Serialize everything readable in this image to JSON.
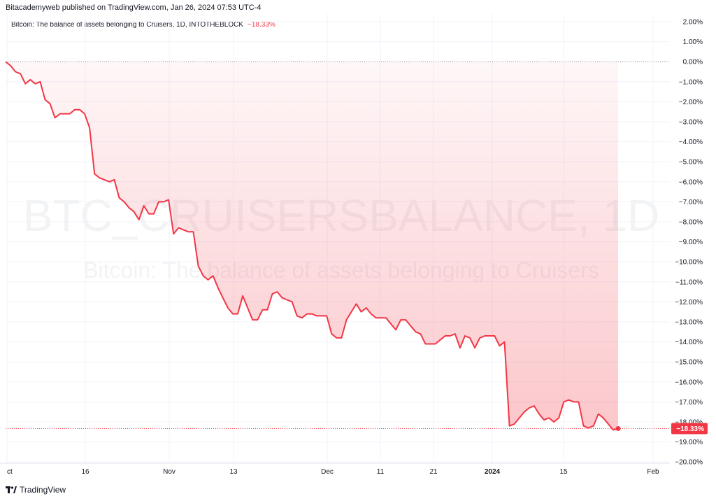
{
  "header": {
    "publisher": "Bitacademyweb published on TradingView.com, Jan 26, 2024 07:53 UTC-4"
  },
  "legend": {
    "title": "Bitcoin: The balance of assets belonging to Cruisers, 1D, INTOTHEBLOCK",
    "change": "−18.33%"
  },
  "watermark": {
    "symbol": "BTC_CRUISERSBALANCE, 1D",
    "description": "Bitcoin: The balance of assets belonging to Cruisers"
  },
  "footer": {
    "brand": "TradingView"
  },
  "colors": {
    "line": "#f23645",
    "fill": "#f23645",
    "zero_line": "#9598a1"
  },
  "chart_data": {
    "type": "area",
    "y_unit": "%",
    "ylim": [
      -20,
      2
    ],
    "y_ticks": [
      "2.00%",
      "1.00%",
      "0.00%",
      "−1.00%",
      "−2.00%",
      "−3.00%",
      "−4.00%",
      "−5.00%",
      "−6.00%",
      "−7.00%",
      "−8.00%",
      "−9.00%",
      "−10.00%",
      "−11.00%",
      "−12.00%",
      "−13.00%",
      "−14.00%",
      "−15.00%",
      "−16.00%",
      "−17.00%",
      "−18.00%",
      "−19.00%",
      "−20.00%"
    ],
    "x_ticks": [
      "ct",
      "16",
      "Nov",
      "13",
      "Dec",
      "11",
      "21",
      "2024",
      "15",
      "Feb"
    ],
    "last_value_label": "−18.33%",
    "grid": true,
    "series": [
      {
        "values": [
          0.0,
          -0.2,
          -0.5,
          -0.6,
          -1.1,
          -0.9,
          -1.1,
          -1.0,
          -1.9,
          -2.1,
          -2.8,
          -2.6,
          -2.6,
          -2.6,
          -2.4,
          -2.4,
          -2.6,
          -3.3,
          -5.6,
          -5.8,
          -5.9,
          -6.0,
          -5.9,
          -6.8,
          -7.0,
          -7.3,
          -7.5,
          -7.9,
          -7.2,
          -7.6,
          -7.6,
          -7.0,
          -7.0,
          -6.9,
          -8.6,
          -8.3,
          -8.4,
          -8.5,
          -8.5,
          -10.2,
          -10.7,
          -10.9,
          -10.7,
          -11.3,
          -11.8,
          -12.3,
          -12.6,
          -12.6,
          -11.7,
          -12.3,
          -12.9,
          -12.9,
          -12.4,
          -12.4,
          -11.6,
          -11.5,
          -11.8,
          -11.9,
          -12.0,
          -12.7,
          -12.8,
          -12.6,
          -12.6,
          -12.7,
          -12.7,
          -12.7,
          -13.6,
          -13.8,
          -13.8,
          -12.9,
          -12.5,
          -12.1,
          -12.5,
          -12.3,
          -12.6,
          -12.8,
          -12.8,
          -12.8,
          -13.1,
          -13.4,
          -12.9,
          -12.9,
          -13.2,
          -13.5,
          -13.6,
          -14.1,
          -14.1,
          -14.1,
          -13.9,
          -13.7,
          -13.7,
          -13.6,
          -14.3,
          -13.7,
          -13.8,
          -14.3,
          -13.8,
          -13.7,
          -13.7,
          -13.7,
          -14.2,
          -14.0,
          -18.2,
          -18.1,
          -17.8,
          -17.5,
          -17.3,
          -17.2,
          -17.6,
          -17.9,
          -17.8,
          -18.0,
          -17.8,
          -17.0,
          -16.9,
          -17.0,
          -17.0,
          -18.2,
          -18.3,
          -18.2,
          -17.6,
          -17.8,
          -18.1,
          -18.4,
          -18.33
        ]
      }
    ]
  }
}
